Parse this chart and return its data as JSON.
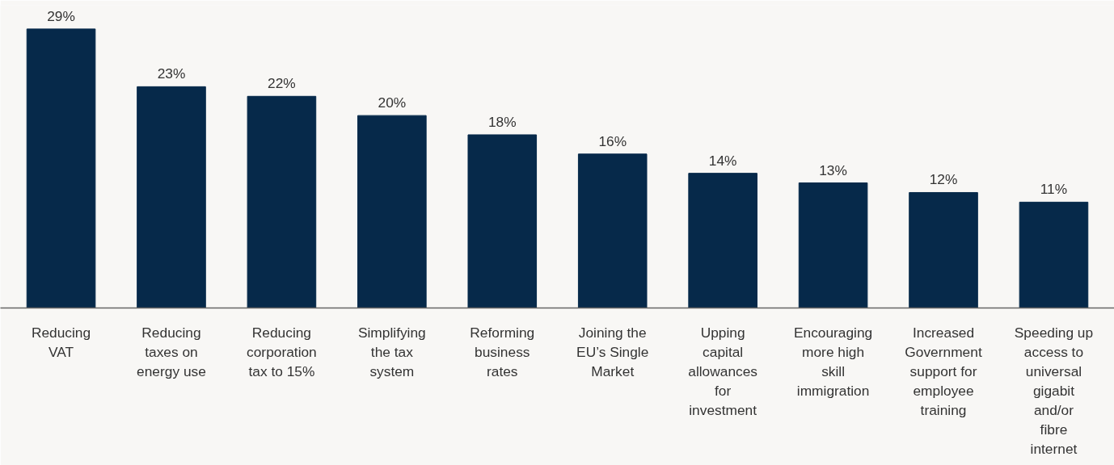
{
  "chart_data": {
    "type": "bar",
    "categories": [
      "Reducing VAT",
      "Reducing taxes on energy use",
      "Reducing corporation tax to 15%",
      "Simplifying the tax system",
      "Reforming business rates",
      "Joining the EU’s Single Market",
      "Upping capital allowances for investment",
      "Encouraging more high skill immigration",
      "Increased Government support for employee training",
      "Speeding up access to universal gigabit and/or fibre internet"
    ],
    "values": [
      29,
      23,
      22,
      20,
      18,
      16,
      14,
      13,
      12,
      11
    ],
    "color": "#06294a",
    "data_labels": true,
    "value_labels": [
      "29%",
      "23%",
      "22%",
      "20%",
      "18%",
      "16%",
      "14%",
      "13%",
      "12%",
      "11%"
    ],
    "grid": false
  }
}
